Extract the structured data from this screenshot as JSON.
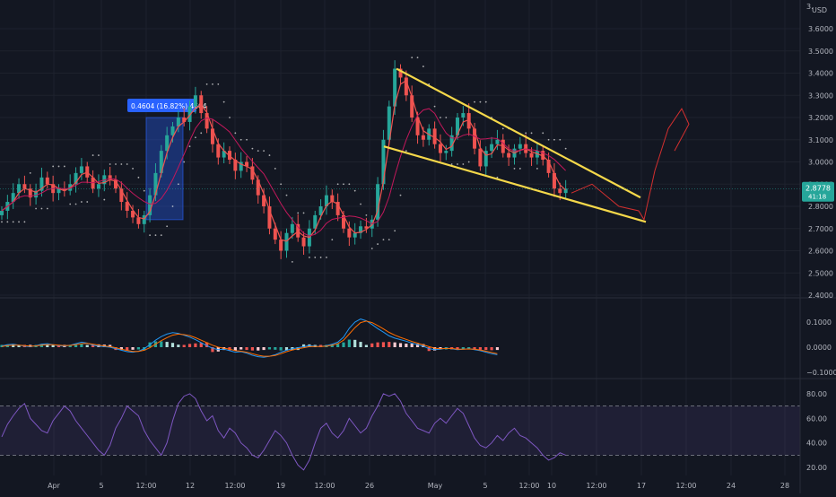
{
  "currency": "USD",
  "colors": {
    "background": "#131722",
    "grid": "#1e222d",
    "up": "#26a69a",
    "down": "#ef5350",
    "wedge": "#f5d84a",
    "measure": "#2962ff",
    "rsi": "#7e57c2",
    "macd": "#2196f3",
    "signal": "#ff6d00",
    "sar": "#e0e0e0",
    "price_badge": "#26a69a",
    "forecast": "#d32f2f"
  },
  "price_axis": {
    "ticks": [
      "3.6000",
      "3.5000",
      "3.4000",
      "3.3000",
      "3.2000",
      "3.1000",
      "3.0000",
      "2.9000",
      "2.8000",
      "2.7000",
      "2.6000",
      "2.5000",
      "2.4000"
    ],
    "top_label": "3."
  },
  "macd_axis": {
    "ticks": [
      "0.1000",
      "0.0000",
      "−0.1000"
    ]
  },
  "rsi_axis": {
    "ticks": [
      "80.00",
      "60.00",
      "40.00",
      "20.00"
    ]
  },
  "time_axis": [
    "Apr",
    "5",
    "12:00",
    "12",
    "12:00",
    "19",
    "12:00",
    "26",
    "May",
    "5",
    "12:00",
    "10",
    "12:00",
    "17",
    "12:00",
    "24",
    "28"
  ],
  "last_price": {
    "value": "2.8778",
    "countdown": "41:18"
  },
  "measure_label": "0.4604 (16.82%) 4604",
  "chart_data": [
    {
      "type": "candlestick",
      "title": "",
      "ylim": [
        2.4,
        3.65
      ],
      "x_range_labels": [
        "Apr",
        "28"
      ],
      "series": [
        {
          "values_close": [
            2.78,
            2.82,
            2.86,
            2.9,
            2.88,
            2.84,
            2.87,
            2.93,
            2.9,
            2.86,
            2.88,
            2.87,
            2.9,
            2.95,
            2.98,
            2.93,
            2.88,
            2.9,
            2.94,
            2.92,
            2.88,
            2.82,
            2.78,
            2.75,
            2.72,
            2.76,
            2.85,
            2.95,
            3.05,
            3.12,
            3.16,
            3.2,
            3.18,
            3.25,
            3.3,
            3.22,
            3.15,
            3.08,
            3.02,
            3.05,
            3.01,
            2.96,
            3.0,
            2.98,
            2.92,
            2.85,
            2.8,
            2.7,
            2.65,
            2.6,
            2.68,
            2.72,
            2.66,
            2.62,
            2.7,
            2.76,
            2.8,
            2.85,
            2.82,
            2.76,
            2.7,
            2.66,
            2.68,
            2.71,
            2.7,
            2.74,
            2.9,
            3.1,
            3.25,
            3.42,
            3.38,
            3.3,
            3.2,
            3.12,
            3.1,
            3.15,
            3.08,
            3.04,
            3.05,
            3.12,
            3.2,
            3.22,
            3.15,
            3.06,
            2.98,
            3.05,
            3.08,
            3.1,
            3.04,
            3.02,
            3.06,
            3.08,
            3.04,
            3.02,
            3.05,
            3.01,
            2.95,
            2.88,
            2.86,
            2.88
          ]
        }
      ]
    },
    {
      "type": "line",
      "title": "",
      "series": [
        {
          "values": [
            0.005,
            0.01,
            0.012,
            0.008,
            0.004,
            0.002,
            0.006,
            0.012,
            0.014,
            0.01,
            0.006,
            0.004,
            0.008,
            0.014,
            0.02,
            0.016,
            0.008,
            0.004,
            0.002,
            0.0,
            -0.006,
            -0.012,
            -0.018,
            -0.02,
            -0.016,
            -0.006,
            0.01,
            0.028,
            0.042,
            0.052,
            0.058,
            0.055,
            0.048,
            0.04,
            0.03,
            0.018,
            0.006,
            -0.004,
            -0.01,
            -0.008,
            -0.014,
            -0.02,
            -0.018,
            -0.024,
            -0.032,
            -0.038,
            -0.04,
            -0.036,
            -0.03,
            -0.02,
            -0.012,
            -0.006,
            -0.002,
            0.002,
            0.006,
            0.004,
            0.002,
            0.006,
            0.012,
            0.02,
            0.04,
            0.075,
            0.1,
            0.112,
            0.105,
            0.09,
            0.074,
            0.06,
            0.045,
            0.036,
            0.03,
            0.024,
            0.016,
            0.01,
            0.004,
            -0.006,
            -0.01,
            -0.008,
            -0.004,
            -0.006,
            -0.01,
            -0.008,
            -0.006,
            -0.01,
            -0.014,
            -0.02,
            -0.026,
            -0.03
          ]
        },
        {
          "values": [
            0.003,
            0.006,
            0.008,
            0.008,
            0.006,
            0.004,
            0.005,
            0.008,
            0.01,
            0.01,
            0.008,
            0.006,
            0.007,
            0.01,
            0.014,
            0.015,
            0.012,
            0.008,
            0.005,
            0.002,
            -0.002,
            -0.008,
            -0.013,
            -0.017,
            -0.017,
            -0.012,
            -0.002,
            0.012,
            0.026,
            0.038,
            0.048,
            0.052,
            0.05,
            0.046,
            0.038,
            0.028,
            0.018,
            0.008,
            0.0,
            -0.004,
            -0.008,
            -0.014,
            -0.016,
            -0.02,
            -0.026,
            -0.032,
            -0.036,
            -0.036,
            -0.033,
            -0.026,
            -0.018,
            -0.011,
            -0.006,
            -0.002,
            0.002,
            0.003,
            0.003,
            0.004,
            0.008,
            0.014,
            0.028,
            0.052,
            0.078,
            0.098,
            0.104,
            0.098,
            0.086,
            0.073,
            0.059,
            0.048,
            0.039,
            0.031,
            0.023,
            0.016,
            0.009,
            0.002,
            -0.004,
            -0.006,
            -0.005,
            -0.005,
            -0.008,
            -0.008,
            -0.007,
            -0.008,
            -0.011,
            -0.016,
            -0.021,
            -0.026
          ]
        }
      ]
    },
    {
      "type": "line",
      "title": "",
      "ylim": [
        15,
        85
      ],
      "reference_lines": [
        70,
        50,
        30
      ],
      "series": [
        {
          "values": [
            45,
            55,
            62,
            68,
            72,
            60,
            55,
            50,
            48,
            58,
            64,
            70,
            66,
            58,
            52,
            46,
            40,
            34,
            30,
            38,
            52,
            60,
            70,
            66,
            62,
            50,
            42,
            36,
            30,
            40,
            58,
            72,
            78,
            80,
            76,
            66,
            58,
            62,
            50,
            44,
            52,
            48,
            40,
            36,
            30,
            28,
            34,
            42,
            50,
            46,
            40,
            30,
            22,
            18,
            26,
            40,
            52,
            56,
            48,
            44,
            50,
            60,
            54,
            48,
            52,
            62,
            70,
            80,
            78,
            80,
            74,
            64,
            58,
            52,
            50,
            48,
            56,
            60,
            56,
            62,
            68,
            64,
            54,
            44,
            38,
            36,
            40,
            46,
            42,
            48,
            52,
            46,
            44,
            40,
            36,
            30,
            26,
            28,
            32,
            30
          ]
        }
      ]
    }
  ]
}
